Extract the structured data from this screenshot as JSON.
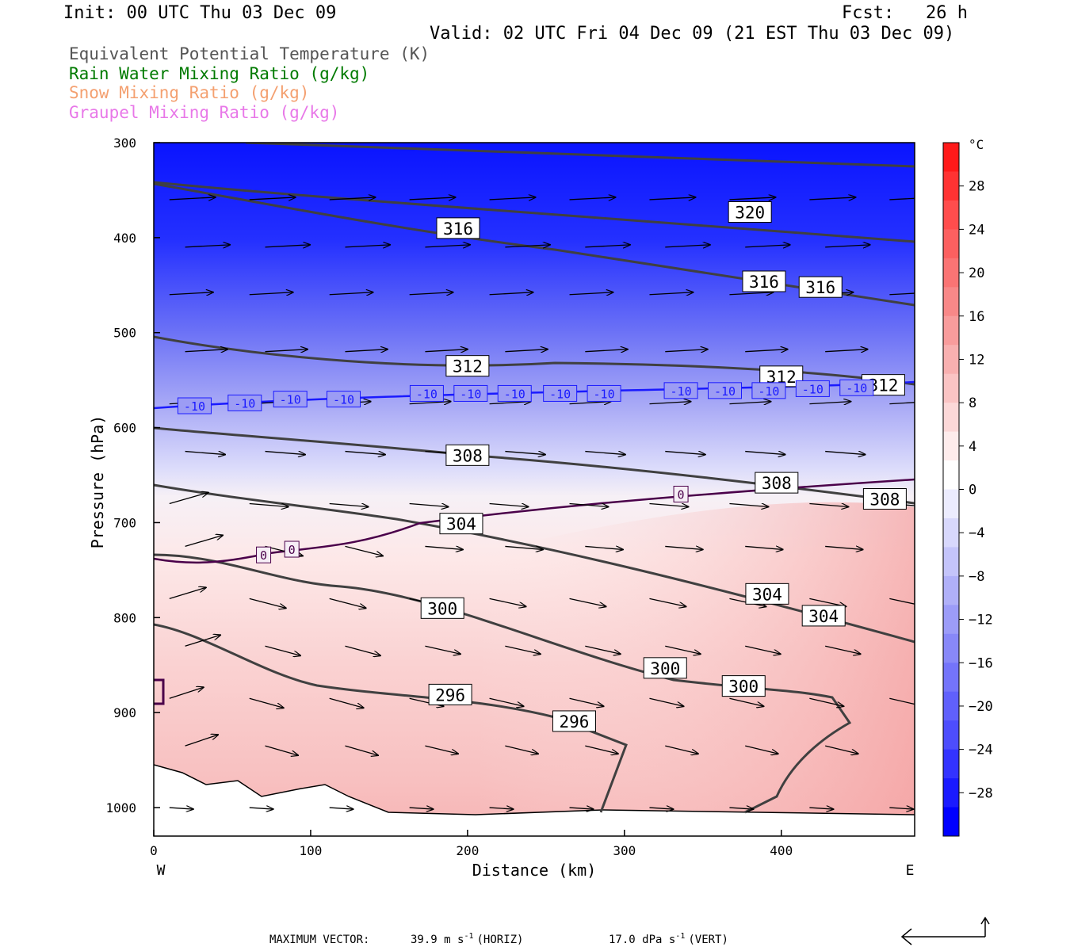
{
  "header": {
    "init": "Init: 00 UTC Thu 03 Dec 09",
    "fcst": "Fcst:   26 h",
    "valid": "Valid: 02 UTC Fri 04 Dec 09 (21 EST Thu 03 Dec 09)"
  },
  "legend": [
    {
      "text": "Equivalent Potential Temperature (K)",
      "color": "#555555"
    },
    {
      "text": "Rain Water Mixing Ratio (g/kg)",
      "color": "#007a00"
    },
    {
      "text": "Snow Mixing Ratio (g/kg)",
      "color": "#f4a070"
    },
    {
      "text": "Graupel Mixing Ratio (g/kg)",
      "color": "#e878e8"
    }
  ],
  "footer": {
    "max_vector_label": "MAXIMUM VECTOR:",
    "horiz": "39.9 m s",
    "horiz_unit": "-1",
    "horiz_suffix": "(HORIZ)",
    "vert": "17.0 dPa s",
    "vert_unit": "-1",
    "vert_suffix": "(VERT)"
  },
  "chart_data": {
    "type": "contour-cross-section",
    "xlabel": "Distance (km)",
    "ylabel": "Pressure (hPa)",
    "xlim": [
      0,
      485
    ],
    "ylim": [
      1030,
      300
    ],
    "x_ticks": [
      0,
      100,
      200,
      300,
      400
    ],
    "y_ticks": [
      300,
      400,
      500,
      600,
      700,
      800,
      900,
      1000
    ],
    "x_end_labels": {
      "left": "W",
      "right": "E"
    },
    "colorbar": {
      "unit": "°C",
      "ticks": [
        28,
        24,
        20,
        16,
        12,
        8,
        4,
        0,
        -4,
        -8,
        -12,
        -16,
        -20,
        -24,
        -28
      ],
      "colors": [
        "#ff1a1a",
        "#ff3333",
        "#ff4d4d",
        "#fc6060",
        "#fa7474",
        "#f88888",
        "#f89c9c",
        "#f8b0b0",
        "#fac4c4",
        "#fcd8d8",
        "#feecec",
        "#ffffff",
        "#ececfe",
        "#d8d8fc",
        "#c4c4fa",
        "#b0b0f8",
        "#9c9cf8",
        "#8888f8",
        "#7474fa",
        "#6060fc",
        "#4d4dfd",
        "#3333ff",
        "#1a1aff",
        "#0000ff"
      ]
    },
    "theta_e_labels": [
      {
        "label": "320",
        "x": 380,
        "p": 373
      },
      {
        "label": "316",
        "x": 194,
        "p": 390
      },
      {
        "label": "316",
        "x": 389,
        "p": 446
      },
      {
        "label": "316",
        "x": 425,
        "p": 452
      },
      {
        "label": "312",
        "x": 200,
        "p": 535
      },
      {
        "label": "312",
        "x": 400,
        "p": 546
      },
      {
        "label": "312",
        "x": 465,
        "p": 555
      },
      {
        "label": "308",
        "x": 200,
        "p": 629
      },
      {
        "label": "308",
        "x": 397,
        "p": 658
      },
      {
        "label": "308",
        "x": 466,
        "p": 675
      },
      {
        "label": "304",
        "x": 196,
        "p": 701
      },
      {
        "label": "304",
        "x": 391,
        "p": 775
      },
      {
        "label": "304",
        "x": 427,
        "p": 798
      },
      {
        "label": "300",
        "x": 184,
        "p": 790
      },
      {
        "label": "300",
        "x": 326,
        "p": 853
      },
      {
        "label": "300",
        "x": 376,
        "p": 872
      },
      {
        "label": "296",
        "x": 189,
        "p": 881
      },
      {
        "label": "296",
        "x": 268,
        "p": 909
      }
    ],
    "temperature_labels": [
      {
        "label": "-10",
        "x": 26,
        "p": 577
      },
      {
        "label": "-10",
        "x": 58,
        "p": 574
      },
      {
        "label": "-10",
        "x": 87,
        "p": 570
      },
      {
        "label": "-10",
        "x": 121,
        "p": 570
      },
      {
        "label": "-10",
        "x": 174,
        "p": 564
      },
      {
        "label": "-10",
        "x": 202,
        "p": 564
      },
      {
        "label": "-10",
        "x": 230,
        "p": 564
      },
      {
        "label": "-10",
        "x": 259,
        "p": 564
      },
      {
        "label": "-10",
        "x": 287,
        "p": 564
      },
      {
        "label": "-10",
        "x": 336,
        "p": 561
      },
      {
        "label": "-10",
        "x": 364,
        "p": 561
      },
      {
        "label": "-10",
        "x": 392,
        "p": 561
      },
      {
        "label": "-10",
        "x": 420,
        "p": 559
      },
      {
        "label": "-10",
        "x": 448,
        "p": 558
      },
      {
        "label": "0",
        "x": 70,
        "p": 734
      },
      {
        "label": "0",
        "x": 88,
        "p": 728
      },
      {
        "label": "0",
        "x": 336,
        "p": 670
      }
    ]
  }
}
